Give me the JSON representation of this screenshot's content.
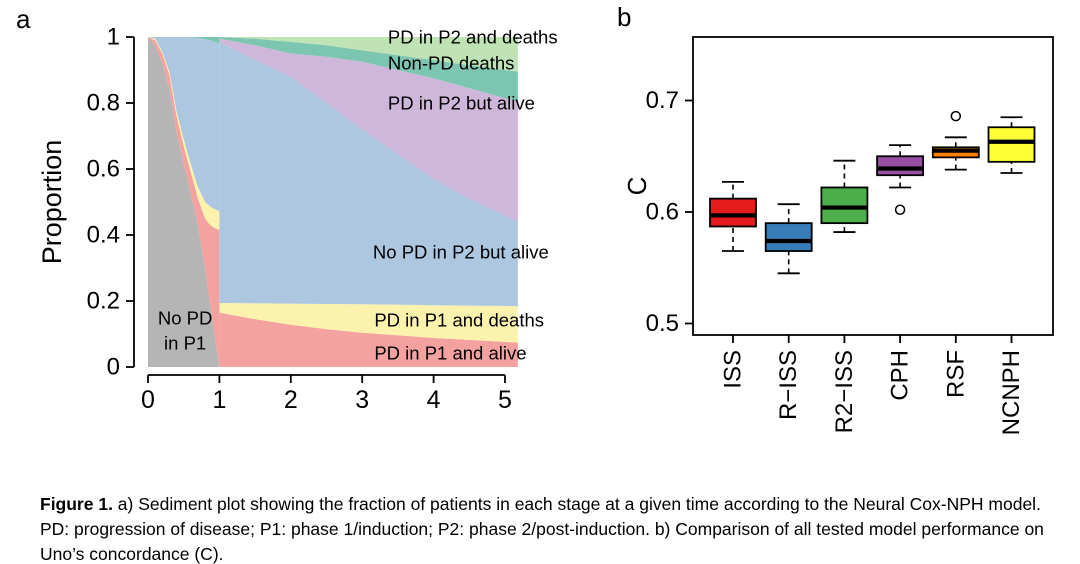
{
  "figure": {
    "panel_a_letter": "a",
    "panel_b_letter": "b"
  },
  "caption": {
    "label": "Figure 1.",
    "text": " a) Sediment plot showing the fraction of patients in each stage at a given time according to the Neural Cox-NPH model. PD: progression of disease; P1: phase 1/induction; P2: phase 2/post-induction. b) Comparison of all tested model performance on Uno’s concordance (C)."
  },
  "chart_data": [
    {
      "type": "area",
      "variant": "sediment-stacked-area",
      "title": "",
      "xlabel": "",
      "ylabel": "Proportion",
      "xlim": [
        0,
        5
      ],
      "ylim": [
        0,
        1
      ],
      "xticks": [
        "0",
        "1",
        "2",
        "3",
        "4",
        "5"
      ],
      "yticks": [
        0,
        0.2,
        0.4,
        0.6,
        0.8,
        1
      ],
      "ytick_labels": [
        "0",
        "0.2",
        "0.4",
        "0.6",
        "0.8",
        "1"
      ],
      "grid": false,
      "phase1": {
        "x": [
          0,
          0.1,
          0.2,
          0.3,
          0.4,
          0.5,
          0.6,
          0.7,
          0.8,
          0.85,
          0.9,
          0.95,
          1.0
        ],
        "layers": [
          {
            "name": "No PD in P1",
            "color": "#b5b5b5",
            "top": [
              1.0,
              0.975,
              0.92,
              0.845,
              0.71,
              0.615,
              0.525,
              0.43,
              0.3,
              0.22,
              0.15,
              0.07,
              0.0
            ]
          },
          {
            "name": "PD in P1 and alive",
            "color": "#f4a29f",
            "top": [
              1.0,
              0.99,
              0.95,
              0.885,
              0.76,
              0.67,
              0.59,
              0.51,
              0.45,
              0.435,
              0.425,
              0.42,
              0.415
            ]
          },
          {
            "name": "PD in P1 and deaths",
            "color": "#fbf2ae",
            "top": [
              1.0,
              0.995,
              0.955,
              0.895,
              0.775,
              0.69,
              0.615,
              0.545,
              0.5,
              0.49,
              0.482,
              0.477,
              0.472
            ]
          },
          {
            "name": "No PD in P2 but alive",
            "color": "#aec7e1",
            "top": [
              1.0,
              1.0,
              1.0,
              1.0,
              1.0,
              1.0,
              0.999,
              0.997,
              0.993,
              0.991,
              0.988,
              0.984,
              0.98
            ]
          },
          {
            "name": "Non-PD deaths",
            "color": "#7cc6b1",
            "top": [
              1.0,
              1.0,
              1.0,
              1.0,
              1.0,
              1.0,
              1.0,
              1.0,
              1.0,
              1.0,
              1.0,
              1.0,
              1.0
            ]
          }
        ]
      },
      "phase2": {
        "x": [
          1,
          1.5,
          2,
          2.5,
          3,
          3.5,
          4,
          4.5,
          5,
          5.18
        ],
        "layers": [
          {
            "name": "PD in P1 and alive",
            "color": "#f4a29f",
            "top": [
              0.165,
              0.145,
              0.128,
              0.115,
              0.104,
              0.096,
              0.088,
              0.082,
              0.076,
              0.074
            ]
          },
          {
            "name": "PD in P1 and deaths",
            "color": "#fbf2ae",
            "top": [
              0.194,
              0.193,
              0.192,
              0.191,
              0.19,
              0.189,
              0.187,
              0.186,
              0.185,
              0.184
            ]
          },
          {
            "name": "No PD in P2 but alive",
            "color": "#aec7e1",
            "top": [
              0.985,
              0.93,
              0.88,
              0.8,
              0.72,
              0.645,
              0.57,
              0.51,
              0.46,
              0.44
            ]
          },
          {
            "name": "PD in P2 but alive",
            "color": "#cfb6db",
            "top": [
              0.995,
              0.975,
              0.95,
              0.94,
              0.925,
              0.9,
              0.875,
              0.845,
              0.815,
              0.805
            ]
          },
          {
            "name": "Non-PD deaths",
            "color": "#7cc6b1",
            "top": [
              1.0,
              0.995,
              0.985,
              0.975,
              0.96,
              0.945,
              0.93,
              0.915,
              0.9,
              0.895
            ]
          },
          {
            "name": "PD in P2 and deaths",
            "color": "#bfe3b4",
            "top": [
              1.0,
              1.0,
              1.0,
              1.0,
              1.0,
              1.0,
              1.0,
              1.0,
              1.0,
              1.0
            ]
          }
        ]
      },
      "annotations": [
        {
          "text": "PD in P2 and deaths",
          "x": 3.36,
          "y": 1.0,
          "anchor": "start"
        },
        {
          "text": "Non-PD deaths",
          "x": 3.36,
          "y": 0.921,
          "anchor": "start"
        },
        {
          "text": "PD in P2 but alive",
          "x": 3.36,
          "y": 0.8,
          "anchor": "start"
        },
        {
          "text": "No PD in P2 but alive",
          "x": 3.15,
          "y": 0.348,
          "anchor": "start"
        },
        {
          "text": "PD in P1 and deaths",
          "x": 3.17,
          "y": 0.142,
          "anchor": "start"
        },
        {
          "text": "PD in P1 and alive",
          "x": 3.17,
          "y": 0.042,
          "anchor": "start"
        },
        {
          "text": "No PD",
          "x": 0.52,
          "y": 0.148,
          "anchor": "middle"
        },
        {
          "text": "in P1",
          "x": 0.52,
          "y": 0.073,
          "anchor": "middle"
        }
      ]
    },
    {
      "type": "boxplot",
      "title": "",
      "xlabel": "",
      "ylabel": "C",
      "yticks": [
        0.5,
        0.6,
        0.7
      ],
      "ytick_labels": [
        "0.5",
        "0.6",
        "0.7"
      ],
      "grid": false,
      "categories": [
        "ISS",
        "R−ISS",
        "R2−ISS",
        "CPH",
        "RSF",
        "NCNPH"
      ],
      "boxes": [
        {
          "label": "ISS",
          "color": "#e41a1c",
          "whisker_low": 0.565,
          "q1": 0.587,
          "median": 0.597,
          "q3": 0.612,
          "whisker_high": 0.627,
          "outliers": []
        },
        {
          "label": "R−ISS",
          "color": "#377eb8",
          "whisker_low": 0.545,
          "q1": 0.565,
          "median": 0.574,
          "q3": 0.59,
          "whisker_high": 0.607,
          "outliers": []
        },
        {
          "label": "R2−ISS",
          "color": "#4daf4a",
          "whisker_low": 0.582,
          "q1": 0.59,
          "median": 0.604,
          "q3": 0.622,
          "whisker_high": 0.646,
          "outliers": []
        },
        {
          "label": "CPH",
          "color": "#984ea3",
          "whisker_low": 0.622,
          "q1": 0.633,
          "median": 0.639,
          "q3": 0.65,
          "whisker_high": 0.66,
          "outliers": [
            0.602
          ]
        },
        {
          "label": "RSF",
          "color": "#ff7f00",
          "whisker_low": 0.638,
          "q1": 0.649,
          "median": 0.655,
          "q3": 0.658,
          "whisker_high": 0.667,
          "outliers": [
            0.686
          ]
        },
        {
          "label": "NCNPH",
          "color": "#ffff33",
          "whisker_low": 0.635,
          "q1": 0.645,
          "median": 0.663,
          "q3": 0.676,
          "whisker_high": 0.685,
          "outliers": []
        }
      ]
    }
  ]
}
